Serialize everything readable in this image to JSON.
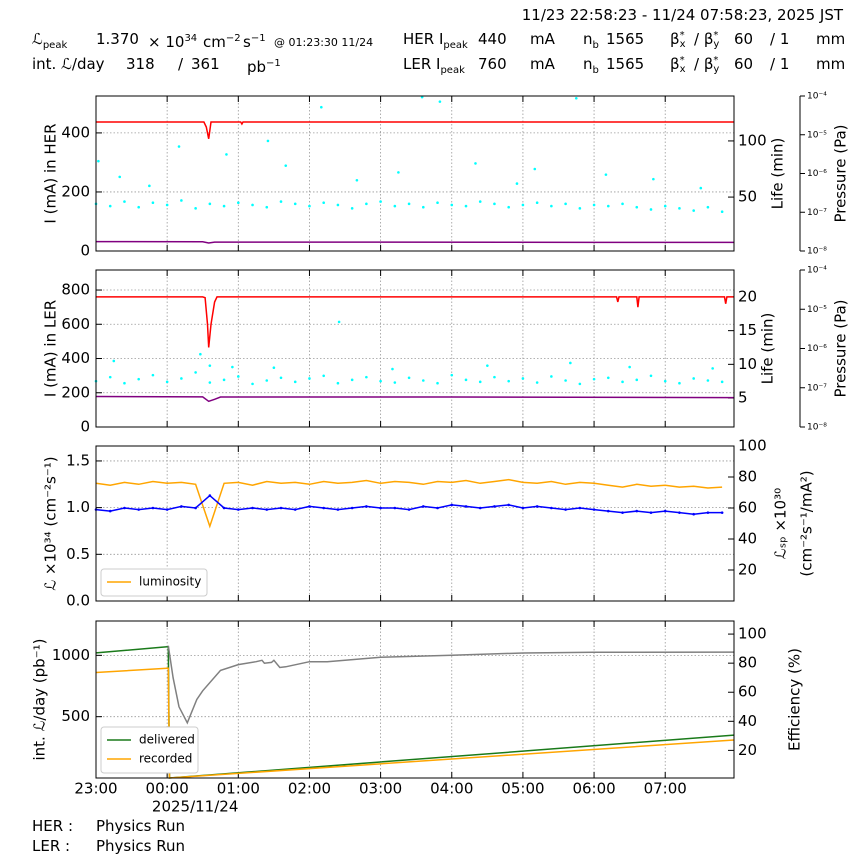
{
  "header": {
    "range": "11/23 22:58:23 - 11/24 07:58:23, 2025 JST",
    "row1": [
      {
        "text": "ℒ",
        "sub": "peak"
      },
      "1.370",
      {
        "text": "× 10",
        "sup": "34"
      },
      {
        "text": "cm",
        "sup": "−2"
      },
      {
        "text": "s",
        "sup": "−1"
      },
      "@ 01:23:30 11/24",
      {
        "text": "HER I",
        "sub": "peak"
      },
      "440",
      "mA",
      {
        "text": "n",
        "sub": "b"
      },
      "1565",
      {
        "text": "β",
        "sup": "*",
        "sub": "x"
      },
      {
        "text": "/ β",
        "sup": "*",
        "sub": "y"
      },
      "60",
      "/ 1",
      "mm"
    ],
    "row2": [
      "int. ℒ/day",
      "318",
      "/",
      "361",
      {
        "text": "pb",
        "sup": "−1"
      },
      {
        "text": "LER I",
        "sub": "peak"
      },
      "760",
      "mA",
      {
        "text": "n",
        "sub": "b"
      },
      "1565",
      {
        "text": "β",
        "sup": "*",
        "sub": "x"
      },
      {
        "text": "/ β",
        "sup": "*",
        "sub": "y"
      },
      "60",
      "/ 1",
      "mm"
    ]
  },
  "footer": [
    [
      "HER :",
      "Physics Run"
    ],
    [
      "LER :",
      "Physics Run"
    ]
  ],
  "chart_data": [
    {
      "type": "line",
      "ylabel": "I (mA) in HER",
      "y2label": "Life (min)",
      "y3label": "Pressure (Pa)",
      "grid": true,
      "xlim": [
        "23:00",
        "07:58"
      ],
      "ylim": [
        0,
        525
      ],
      "yticks": [
        0,
        200,
        400
      ],
      "y2lim": [
        2,
        140
      ],
      "y2ticks": [
        50,
        100
      ],
      "y3log": true,
      "y3lim": [
        1e-08,
        0.0001
      ],
      "y3ticks": [
        {
          "value": 1e-08,
          "label": "10⁻⁸"
        },
        {
          "value": 1e-07,
          "label": "10⁻⁷"
        },
        {
          "value": 1e-06,
          "label": "10⁻⁶"
        },
        {
          "value": 1e-05,
          "label": "10⁻⁵"
        },
        {
          "value": 0.0001,
          "label": "10⁻⁴"
        }
      ],
      "series": [
        {
          "color": "#00ffff",
          "style": "markers",
          "axis": "y2",
          "x": [
            "23:00",
            "23:12",
            "23:24",
            "23:36",
            "23:48",
            "00:00",
            "00:12",
            "00:24",
            "00:36",
            "00:48",
            "01:00",
            "01:12",
            "01:24",
            "01:36",
            "01:48",
            "02:00",
            "02:12",
            "02:24",
            "02:36",
            "02:48",
            "03:00",
            "03:12",
            "03:24",
            "03:36",
            "03:48",
            "04:00",
            "04:12",
            "04:24",
            "04:36",
            "04:48",
            "05:00",
            "05:12",
            "05:24",
            "05:36",
            "05:48",
            "06:00",
            "06:12",
            "06:24",
            "06:36",
            "06:48",
            "07:00",
            "07:12",
            "07:24",
            "07:36",
            "07:48"
          ],
          "values": [
            44,
            42,
            46,
            41,
            45,
            43,
            47,
            40,
            44,
            42,
            45,
            43,
            41,
            46,
            44,
            42,
            45,
            43,
            40,
            44,
            46,
            42,
            44,
            41,
            45,
            43,
            42,
            46,
            44,
            41,
            43,
            45,
            42,
            44,
            40,
            43,
            42,
            44,
            41,
            39,
            42,
            40,
            38,
            41,
            37
          ]
        },
        {
          "color": "#00ffff",
          "style": "markers",
          "axis": "y2",
          "x": [
            "23:02",
            "23:20",
            "23:45",
            "00:10",
            "00:50",
            "01:25",
            "01:40",
            "02:10",
            "02:40",
            "03:15",
            "03:35",
            "03:50",
            "04:20",
            "04:55",
            "05:10",
            "05:45",
            "06:10",
            "06:50",
            "07:30"
          ],
          "values": [
            82,
            68,
            60,
            95,
            88,
            100,
            78,
            130,
            65,
            72,
            139,
            135,
            80,
            62,
            75,
            138,
            70,
            66,
            58
          ]
        },
        {
          "color": "#ff0000",
          "x": [
            "23:00",
            "00:00",
            "00:31",
            "00:33",
            "00:35",
            "00:37",
            "01:02",
            "01:03",
            "01:04",
            "02:00",
            "04:00",
            "06:00",
            "07:58"
          ],
          "values": [
            437,
            437,
            437,
            420,
            380,
            437,
            437,
            430,
            437,
            437,
            437,
            437,
            437
          ]
        },
        {
          "color": "#800080",
          "x": [
            "23:00",
            "00:30",
            "00:35",
            "00:40",
            "03:00",
            "06:00",
            "07:58"
          ],
          "values": [
            32,
            31,
            27,
            30,
            30,
            29,
            29
          ]
        }
      ]
    },
    {
      "type": "line",
      "ylabel": "I (mA) in LER",
      "y2label": "Life (min)",
      "y3label": "Pressure (Pa)",
      "grid": true,
      "xlim": [
        "23:00",
        "07:58"
      ],
      "ylim": [
        0,
        917
      ],
      "yticks": [
        0,
        200,
        400,
        600,
        800
      ],
      "y2lim": [
        0.7,
        24
      ],
      "y2ticks": [
        5,
        10,
        15,
        20
      ],
      "y3log": true,
      "y3lim": [
        1e-08,
        0.0001
      ],
      "y3ticks": [
        {
          "value": 1e-08,
          "label": "10⁻⁸"
        },
        {
          "value": 1e-07,
          "label": "10⁻⁷"
        },
        {
          "value": 1e-06,
          "label": "10⁻⁶"
        },
        {
          "value": 1e-05,
          "label": "10⁻⁵"
        },
        {
          "value": 0.0001,
          "label": "10⁻⁴"
        }
      ],
      "series": [
        {
          "color": "#00ffff",
          "style": "markers",
          "axis": "y2",
          "x": [
            "23:00",
            "23:12",
            "23:24",
            "23:36",
            "23:48",
            "00:00",
            "00:12",
            "00:24",
            "00:36",
            "00:48",
            "01:00",
            "01:12",
            "01:24",
            "01:36",
            "01:48",
            "02:00",
            "02:12",
            "02:24",
            "02:36",
            "02:48",
            "03:00",
            "03:12",
            "03:24",
            "03:36",
            "03:48",
            "04:00",
            "04:12",
            "04:24",
            "04:36",
            "04:48",
            "05:00",
            "05:12",
            "05:24",
            "05:36",
            "05:48",
            "06:00",
            "06:12",
            "06:24",
            "06:36",
            "06:48",
            "07:00",
            "07:12",
            "07:24",
            "07:36",
            "07:48"
          ],
          "values": [
            7.5,
            8.1,
            7.2,
            7.8,
            8.4,
            7.4,
            7.9,
            8.8,
            7.3,
            7.7,
            8.2,
            7.1,
            7.6,
            8.0,
            7.4,
            7.9,
            8.3,
            7.2,
            7.7,
            8.1,
            7.5,
            7.3,
            8.0,
            7.6,
            7.2,
            8.4,
            7.7,
            7.4,
            8.1,
            7.5,
            7.9,
            7.3,
            8.2,
            7.6,
            7.1,
            7.8,
            8.0,
            7.4,
            7.7,
            8.3,
            7.5,
            7.2,
            7.9,
            7.6,
            7.4
          ]
        },
        {
          "color": "#00ffff",
          "style": "markers",
          "axis": "y2",
          "x": [
            "23:15",
            "00:28",
            "00:36",
            "00:55",
            "01:30",
            "02:25",
            "03:10",
            "04:30",
            "05:40",
            "06:30",
            "07:40"
          ],
          "values": [
            10.5,
            11.5,
            9.8,
            9.6,
            9.5,
            16.3,
            9.3,
            9.8,
            10.2,
            9.6,
            9.4
          ]
        },
        {
          "color": "#ff0000",
          "x": [
            "23:00",
            "00:30",
            "00:32",
            "00:34",
            "00:35",
            "00:37",
            "00:40",
            "00:42",
            "06:19",
            "06:20",
            "06:21",
            "06:36",
            "06:37",
            "06:38",
            "07:50",
            "07:51",
            "07:52",
            "07:58"
          ],
          "values": [
            760,
            760,
            755,
            600,
            465,
            600,
            730,
            760,
            760,
            730,
            760,
            760,
            700,
            760,
            760,
            720,
            760,
            760
          ]
        },
        {
          "color": "#800080",
          "x": [
            "23:00",
            "00:30",
            "00:35",
            "00:40",
            "00:45",
            "04:00",
            "07:58"
          ],
          "values": [
            178,
            176,
            150,
            162,
            175,
            175,
            172
          ]
        }
      ]
    },
    {
      "type": "line",
      "ylabel": "ℒ ×10³⁴ (cm⁻²s⁻¹)",
      "y2label": [
        "ℒₛₚ ×10³⁰",
        "(cm⁻²s⁻¹/mA²)"
      ],
      "grid": true,
      "legend": "lower left",
      "xlim": [
        "23:00",
        "07:58"
      ],
      "ylim": [
        0,
        1.66
      ],
      "yticks": [
        {
          "value": 0,
          "label": "0.0"
        },
        0.5,
        {
          "value": 1,
          "label": "1.0"
        },
        1.5
      ],
      "y2lim": [
        0,
        100
      ],
      "y2ticks": [
        20,
        40,
        60,
        80,
        100
      ],
      "x": [
        "23:00",
        "23:12",
        "23:24",
        "23:36",
        "23:48",
        "00:00",
        "00:12",
        "00:24",
        "00:36",
        "00:48",
        "01:00",
        "01:12",
        "01:24",
        "01:36",
        "01:48",
        "02:00",
        "02:12",
        "02:24",
        "02:36",
        "02:48",
        "03:00",
        "03:12",
        "03:24",
        "03:36",
        "03:48",
        "04:00",
        "04:12",
        "04:24",
        "04:36",
        "04:48",
        "05:00",
        "05:12",
        "05:24",
        "05:36",
        "05:48",
        "06:00",
        "06:12",
        "06:24",
        "06:36",
        "06:48",
        "07:00",
        "07:12",
        "07:24",
        "07:36",
        "07:48"
      ],
      "series": [
        {
          "name": "luminosity",
          "color": "#ffa500",
          "values": [
            1.26,
            1.24,
            1.27,
            1.25,
            1.28,
            1.26,
            1.27,
            1.25,
            0.8,
            1.26,
            1.27,
            1.24,
            1.28,
            1.26,
            1.27,
            1.25,
            1.28,
            1.26,
            1.27,
            1.29,
            1.26,
            1.28,
            1.27,
            1.25,
            1.28,
            1.27,
            1.29,
            1.26,
            1.28,
            1.3,
            1.27,
            1.26,
            1.28,
            1.25,
            1.27,
            1.26,
            1.24,
            1.22,
            1.25,
            1.23,
            1.24,
            1.22,
            1.23,
            1.21,
            1.22
          ]
        },
        {
          "color": "#0000ff",
          "axis": "y2",
          "style": "line-markers",
          "values": [
            59,
            58,
            60,
            59,
            60,
            59,
            61,
            60,
            68,
            60,
            59,
            60,
            59,
            60,
            59,
            61,
            60,
            59,
            60,
            61,
            60,
            60,
            59,
            61,
            60,
            62,
            61,
            60,
            61,
            62,
            60,
            61,
            60,
            59,
            60,
            59,
            58,
            57,
            58,
            57,
            58,
            57,
            56,
            57,
            57
          ]
        }
      ]
    },
    {
      "type": "line",
      "ylabel": "int. ℒ/day (pb⁻¹)",
      "y2label": "Efficiency (%)",
      "grid": true,
      "legend": "lower left",
      "xlim": [
        "23:00",
        "07:58"
      ],
      "xticks": [
        "23:00",
        "00:00",
        "01:00",
        "02:00",
        "03:00",
        "04:00",
        "05:00",
        "06:00",
        "07:00"
      ],
      "xdate": {
        "value": "00:00",
        "label": "2025/11/24"
      },
      "ylim": [
        0,
        1280
      ],
      "yticks": [
        500,
        1000
      ],
      "y2lim": [
        1,
        109
      ],
      "y2ticks": [
        20,
        40,
        60,
        80,
        100
      ],
      "series": [
        {
          "name": "delivered",
          "color": "#1a7a1a",
          "x": [
            "23:00",
            "00:00",
            "00:01",
            "00:02",
            "07:58"
          ],
          "values": [
            1020,
            1070,
            1070,
            0,
            350
          ]
        },
        {
          "name": "recorded",
          "color": "#ffa500",
          "x": [
            "23:00",
            "00:00",
            "00:01",
            "00:02",
            "07:58"
          ],
          "values": [
            860,
            895,
            895,
            0,
            310
          ]
        },
        {
          "color": "#808080",
          "axis": "y2",
          "x": [
            "00:01",
            "00:05",
            "00:10",
            "00:17",
            "00:25",
            "00:30",
            "00:45",
            "01:00",
            "01:15",
            "01:20",
            "01:22",
            "01:28",
            "01:30",
            "01:35",
            "01:40",
            "02:00",
            "02:15",
            "03:00",
            "04:00",
            "05:00",
            "06:00",
            "07:58"
          ],
          "values": [
            92,
            70,
            50,
            39,
            55,
            61,
            75,
            79,
            81,
            82,
            80,
            80.5,
            82,
            77,
            77.5,
            81,
            81,
            84,
            85.5,
            87,
            87.5,
            87.6
          ]
        }
      ]
    }
  ]
}
